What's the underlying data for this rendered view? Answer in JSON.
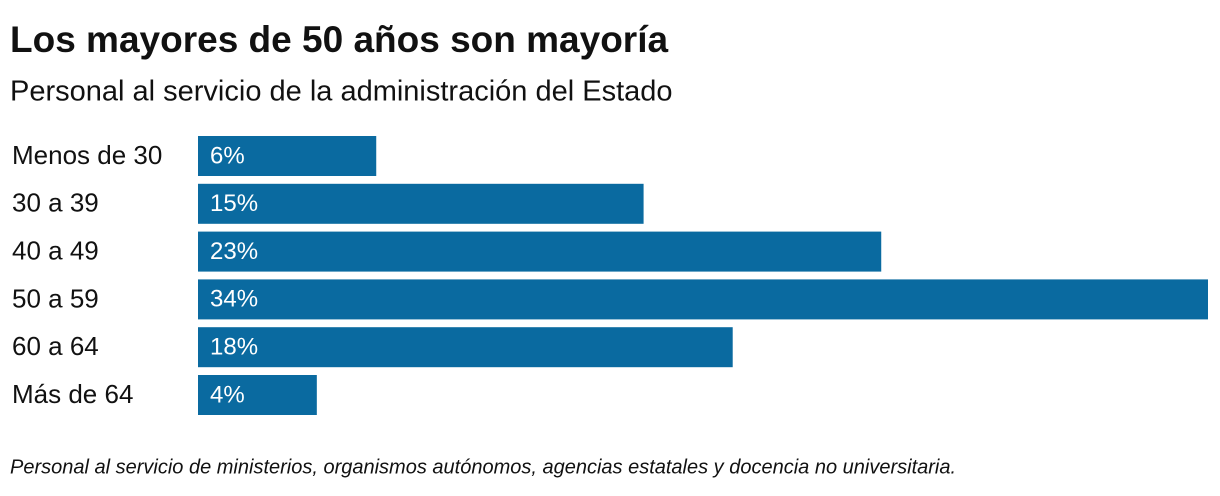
{
  "chart_data": {
    "type": "bar",
    "orientation": "horizontal",
    "title": "Los mayores de 50 años son mayoría",
    "subtitle": "Personal al servicio de la administración del Estado",
    "categories": [
      "Menos de 30",
      "30 a 39",
      "40 a 49",
      "50 a 59",
      "60 a 64",
      "Más de 64"
    ],
    "values": [
      6,
      15,
      23,
      34,
      18,
      4
    ],
    "value_labels": [
      "6%",
      "15%",
      "23%",
      "34%",
      "18%",
      "4%"
    ],
    "color": "#0a6aa0",
    "note": "Personal al servicio de ministerios, organismos autónomos, agencias estatales y docencia no universitaria."
  }
}
